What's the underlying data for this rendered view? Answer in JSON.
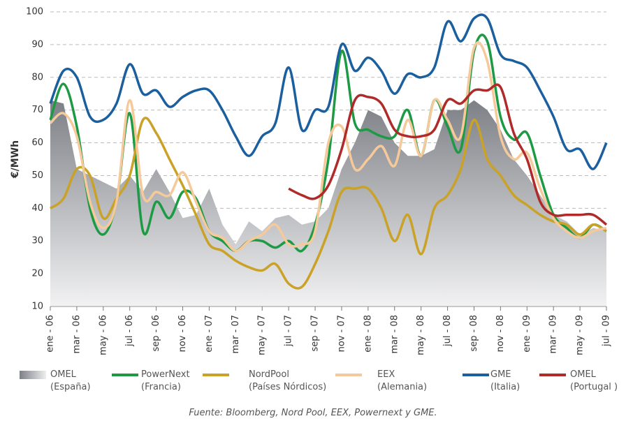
{
  "chart_data": {
    "type": "line",
    "y_label": "€/MWh",
    "source": "Fuente: Bloomberg, Nord Pool, EEX, Powernext y GME.",
    "categories": [
      "ene - 06",
      null,
      "mar - 06",
      null,
      "may - 06",
      null,
      "jul - 06",
      null,
      "sep - 06",
      null,
      "nov - 06",
      null,
      "ene - 07",
      null,
      "mar - 07",
      null,
      "may - 07",
      null,
      "jul - 07",
      null,
      "sep - 07",
      null,
      "nov - 07",
      null,
      "ene - 08",
      null,
      "mar - 08",
      null,
      "may - 08",
      null,
      "jul - 08",
      null,
      "sep - 08",
      null,
      "nov - 08",
      null,
      "ene - 09",
      null,
      "mar - 09",
      null,
      "may - 09",
      null,
      "jul - 09"
    ],
    "ylim": [
      10,
      100
    ],
    "yticks": [
      10,
      20,
      30,
      40,
      50,
      60,
      70,
      80,
      90,
      100
    ],
    "grid": true,
    "series": [
      {
        "name": "OMEL\n(España)",
        "style": "area",
        "color": "#8a8d92",
        "values": [
          73,
          72,
          52,
          50,
          48,
          46,
          50,
          45,
          52,
          45,
          37,
          38,
          46,
          35,
          29,
          36,
          33,
          37,
          38,
          35,
          36,
          40,
          52,
          60,
          70,
          68,
          60,
          56,
          56,
          58,
          70,
          70,
          73,
          70,
          64,
          55,
          50,
          44,
          38,
          36,
          32,
          34,
          33
        ]
      },
      {
        "name": "PowerNext\n(Francia)",
        "color": "#1e9a45",
        "values": [
          67,
          78,
          65,
          40,
          32,
          42,
          69,
          33,
          42,
          37,
          45,
          43,
          33,
          30,
          27,
          30,
          30,
          28,
          30,
          27,
          35,
          55,
          88,
          66,
          64,
          62,
          62,
          70,
          56,
          73,
          65,
          58,
          88,
          91,
          68,
          61,
          63,
          50,
          38,
          34,
          31,
          35,
          33
        ]
      },
      {
        "name": "NordPool\n(Países Nórdicos)",
        "color": "#c9a227",
        "values": [
          40,
          43,
          52,
          50,
          37,
          43,
          50,
          67,
          63,
          55,
          47,
          38,
          29,
          27,
          24,
          22,
          21,
          23,
          17,
          16,
          23,
          33,
          45,
          46,
          46,
          40,
          30,
          38,
          26,
          40,
          44,
          52,
          67,
          55,
          50,
          44,
          41,
          38,
          36,
          35,
          32,
          35,
          33
        ]
      },
      {
        "name": "EEX\n(Alemania)",
        "color": "#f6c99a",
        "values": [
          66,
          69,
          62,
          42,
          34,
          42,
          73,
          44,
          45,
          44,
          51,
          42,
          33,
          31,
          27,
          30,
          32,
          35,
          29,
          29,
          33,
          60,
          65,
          52,
          55,
          59,
          53,
          67,
          56,
          73,
          67,
          62,
          89,
          85,
          62,
          55,
          57,
          46,
          37,
          33,
          31,
          33,
          34
        ]
      },
      {
        "name": "GME\n(Italia)",
        "color": "#1b5f9e",
        "values": [
          72,
          82,
          80,
          68,
          67,
          72,
          84,
          75,
          76,
          71,
          74,
          76,
          76,
          70,
          62,
          56,
          62,
          66,
          83,
          64,
          70,
          71,
          90,
          82,
          86,
          82,
          75,
          81,
          80,
          83,
          97,
          91,
          98,
          98,
          87,
          85,
          83,
          76,
          68,
          58,
          58,
          52,
          60
        ]
      },
      {
        "name": "OMEL\n(Portugal )",
        "color": "#b02a2a",
        "values": [
          null,
          null,
          null,
          null,
          null,
          null,
          null,
          null,
          null,
          null,
          null,
          null,
          null,
          null,
          null,
          null,
          null,
          null,
          46,
          44,
          43,
          47,
          58,
          73,
          74,
          72,
          64,
          62,
          62,
          64,
          73,
          72,
          76,
          76,
          77,
          63,
          55,
          42,
          38,
          38,
          38,
          38,
          35
        ]
      }
    ]
  }
}
